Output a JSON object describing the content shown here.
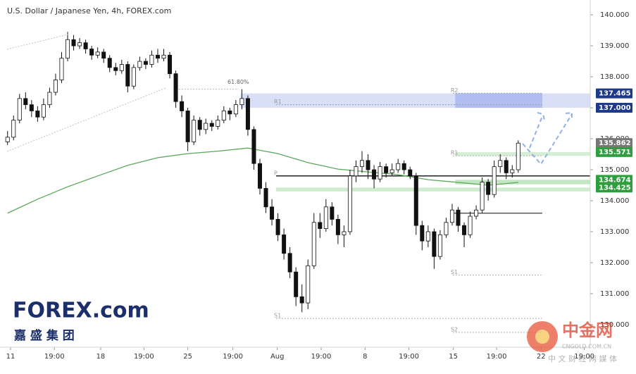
{
  "chart_data": {
    "type": "candlestick",
    "title": "U.S. Dollar / Japanese Yen, 4h, FOREX.com",
    "ylim": [
      129.27,
      140.48
    ],
    "xlim": [
      -0.67,
      96.98
    ],
    "yticks": [
      {
        "value": 130,
        "label": "130.000"
      },
      {
        "value": 131,
        "label": "131.000"
      },
      {
        "value": 132,
        "label": "132.000"
      },
      {
        "value": 133,
        "label": "133.000"
      },
      {
        "value": 134,
        "label": "134.000"
      },
      {
        "value": 135,
        "label": "135.000"
      },
      {
        "value": 136,
        "label": "136.000"
      },
      {
        "value": 137,
        "label": "137.000"
      },
      {
        "value": 138,
        "label": "138.000"
      },
      {
        "value": 139,
        "label": "139.000"
      },
      {
        "value": 140,
        "label": "140.000"
      }
    ],
    "xticks": [
      {
        "value": 0.5,
        "label": "11"
      },
      {
        "value": 7.8,
        "label": "19:00"
      },
      {
        "value": 15.5,
        "label": "18"
      },
      {
        "value": 22.7,
        "label": "19:00"
      },
      {
        "value": 30,
        "label": "25"
      },
      {
        "value": 37.5,
        "label": "19:00"
      },
      {
        "value": 44.9,
        "label": "Aug"
      },
      {
        "value": 52.2,
        "label": "19:00"
      },
      {
        "value": 59.5,
        "label": "8"
      },
      {
        "value": 66.8,
        "label": "19:00"
      },
      {
        "value": 74.2,
        "label": "15"
      },
      {
        "value": 81.4,
        "label": "19:00"
      },
      {
        "value": 88.8,
        "label": "22"
      },
      {
        "value": 96,
        "label": "19:00"
      }
    ],
    "up_color": "#ffffff",
    "down_color": "#111111",
    "outline_color": "#111111",
    "candles": [
      [
        135.9,
        136.25,
        135.8,
        136.05
      ],
      [
        136.05,
        136.75,
        135.95,
        136.6
      ],
      [
        136.6,
        137.45,
        136.5,
        137.3
      ],
      [
        137.3,
        137.5,
        136.95,
        137.1
      ],
      [
        137.1,
        137.25,
        136.7,
        136.9
      ],
      [
        136.9,
        137.05,
        136.55,
        136.7
      ],
      [
        136.7,
        137.3,
        136.6,
        137.1
      ],
      [
        137.1,
        137.65,
        137.0,
        137.5
      ],
      [
        137.5,
        138.1,
        137.4,
        137.9
      ],
      [
        137.9,
        138.8,
        137.8,
        138.6
      ],
      [
        138.6,
        139.45,
        138.5,
        139.2
      ],
      [
        139.2,
        139.35,
        138.85,
        139.0
      ],
      [
        139.0,
        139.25,
        138.9,
        139.1
      ],
      [
        139.1,
        139.2,
        138.75,
        138.9
      ],
      [
        138.9,
        139.0,
        138.55,
        138.7
      ],
      [
        138.7,
        138.95,
        138.6,
        138.8
      ],
      [
        138.8,
        138.9,
        138.45,
        138.6
      ],
      [
        138.6,
        138.7,
        138.15,
        138.3
      ],
      [
        138.3,
        138.45,
        138.05,
        138.2
      ],
      [
        138.2,
        138.55,
        138.1,
        138.4
      ],
      [
        138.4,
        138.5,
        137.5,
        137.7
      ],
      [
        137.7,
        138.4,
        137.6,
        138.3
      ],
      [
        138.3,
        138.65,
        138.2,
        138.5
      ],
      [
        138.5,
        138.6,
        138.25,
        138.4
      ],
      [
        138.4,
        138.85,
        138.3,
        138.7
      ],
      [
        138.7,
        138.9,
        138.45,
        138.6
      ],
      [
        138.6,
        138.9,
        138.5,
        138.7
      ],
      [
        138.7,
        138.8,
        137.95,
        138.1
      ],
      [
        138.1,
        138.2,
        137.0,
        137.2
      ],
      [
        137.2,
        137.4,
        136.7,
        136.9
      ],
      [
        136.9,
        137.0,
        135.6,
        135.9
      ],
      [
        135.9,
        136.75,
        135.8,
        136.6
      ],
      [
        136.6,
        136.7,
        136.1,
        136.3
      ],
      [
        136.3,
        136.65,
        136.15,
        136.5
      ],
      [
        136.5,
        136.6,
        136.25,
        136.4
      ],
      [
        136.4,
        136.75,
        136.3,
        136.6
      ],
      [
        136.6,
        137.05,
        136.5,
        136.9
      ],
      [
        136.9,
        137.0,
        136.6,
        136.8
      ],
      [
        136.8,
        137.25,
        136.7,
        137.1
      ],
      [
        137.1,
        137.6,
        136.95,
        137.3
      ],
      [
        137.3,
        137.4,
        136.1,
        136.3
      ],
      [
        136.3,
        136.4,
        135.0,
        135.2
      ],
      [
        135.2,
        135.35,
        134.2,
        134.4
      ],
      [
        134.4,
        134.6,
        133.6,
        133.8
      ],
      [
        133.8,
        134.05,
        133.2,
        133.4
      ],
      [
        133.4,
        133.6,
        132.7,
        132.9
      ],
      [
        132.9,
        133.1,
        132.1,
        132.3
      ],
      [
        132.3,
        132.5,
        131.5,
        131.7
      ],
      [
        131.7,
        131.85,
        130.6,
        130.9
      ],
      [
        130.9,
        131.3,
        130.4,
        130.7
      ],
      [
        130.7,
        132.1,
        130.5,
        131.9
      ],
      [
        131.9,
        133.6,
        131.8,
        133.3
      ],
      [
        133.3,
        133.6,
        132.8,
        133.1
      ],
      [
        133.1,
        134.05,
        133.0,
        133.8
      ],
      [
        133.8,
        133.95,
        133.2,
        133.4
      ],
      [
        133.4,
        133.55,
        132.6,
        132.9
      ],
      [
        132.9,
        133.2,
        132.5,
        133.0
      ],
      [
        133.0,
        135.0,
        132.9,
        134.8
      ],
      [
        134.8,
        135.3,
        134.6,
        135.1
      ],
      [
        135.1,
        135.6,
        134.9,
        135.3
      ],
      [
        135.3,
        135.5,
        134.7,
        135.0
      ],
      [
        135.0,
        135.15,
        134.4,
        134.7
      ],
      [
        134.7,
        135.25,
        134.6,
        135.1
      ],
      [
        135.1,
        135.2,
        134.75,
        134.9
      ],
      [
        134.9,
        135.2,
        134.8,
        135.0
      ],
      [
        135.0,
        135.35,
        134.9,
        135.2
      ],
      [
        135.2,
        135.3,
        134.85,
        135.0
      ],
      [
        135.0,
        135.1,
        134.7,
        134.8
      ],
      [
        134.8,
        134.9,
        132.9,
        133.2
      ],
      [
        133.2,
        133.35,
        132.4,
        132.7
      ],
      [
        132.7,
        133.2,
        132.5,
        133.0
      ],
      [
        133.0,
        133.1,
        131.8,
        132.2
      ],
      [
        132.2,
        133.05,
        132.1,
        132.9
      ],
      [
        132.9,
        133.45,
        132.8,
        133.3
      ],
      [
        133.3,
        133.9,
        133.2,
        133.7
      ],
      [
        133.7,
        133.8,
        133.0,
        133.2
      ],
      [
        133.2,
        133.3,
        132.5,
        132.9
      ],
      [
        132.9,
        133.65,
        132.8,
        133.5
      ],
      [
        133.5,
        133.85,
        133.4,
        133.7
      ],
      [
        133.7,
        134.75,
        133.6,
        134.6
      ],
      [
        134.6,
        134.7,
        134.0,
        134.2
      ],
      [
        134.2,
        135.3,
        134.1,
        135.1
      ],
      [
        135.1,
        135.5,
        134.9,
        135.3
      ],
      [
        135.3,
        135.4,
        134.7,
        134.9
      ],
      [
        134.9,
        135.15,
        134.75,
        135.0
      ],
      [
        135.0,
        135.95,
        134.9,
        135.86
      ]
    ],
    "ma": {
      "color": "#5aa85a",
      "x": [
        0,
        5,
        10,
        15,
        20,
        25,
        30,
        35,
        40,
        45,
        50,
        55,
        60,
        65,
        70,
        75,
        80,
        85
      ],
      "values": [
        133.6,
        134.05,
        134.45,
        134.8,
        135.14,
        135.39,
        135.52,
        135.6,
        135.7,
        135.52,
        135.23,
        135.02,
        134.93,
        134.84,
        134.68,
        134.59,
        134.5,
        134.59
      ]
    },
    "zones": [
      {
        "range": [
          137.0,
          137.465
        ],
        "x": [
          38.8,
          96.98
        ],
        "color": "rgba(120,140,225,0.28)"
      },
      {
        "range": [
          137.0,
          137.465
        ],
        "x": [
          74.5,
          89
        ],
        "color": "rgba(100,125,225,0.35)"
      },
      {
        "range": [
          135.45,
          135.571
        ],
        "x": [
          74.5,
          96.98
        ],
        "color": "rgba(120,200,120,0.3)"
      },
      {
        "range": [
          134.53,
          134.674
        ],
        "x": [
          74.5,
          96.98
        ],
        "color": "rgba(120,200,120,0.45)"
      },
      {
        "range": [
          134.3,
          134.425
        ],
        "x": [
          44.7,
          96.98
        ],
        "color": "rgba(120,200,120,0.35)"
      }
    ],
    "levels": [
      {
        "label": "P",
        "value": 134.8,
        "x": [
          44.7,
          96.98
        ],
        "color": "#222222"
      },
      {
        "label": "R1",
        "value": 137.1,
        "x": [
          44.7,
          89
        ],
        "color": "#9aa0b0"
      },
      {
        "label": "R2",
        "value": 137.47,
        "x": [
          74.1,
          89
        ],
        "color": "#9aa0b0"
      },
      {
        "label": "R1",
        "value": 135.45,
        "x": [
          74.1,
          89
        ],
        "color": "#b0b0b0"
      },
      {
        "label": "S1",
        "value": 130.2,
        "x": [
          44.7,
          89
        ],
        "color": "#b0b0b0"
      },
      {
        "label": "S1",
        "value": 131.6,
        "x": [
          74.1,
          89
        ],
        "color": "#b0b0b0"
      },
      {
        "label": "S2",
        "value": 129.75,
        "x": [
          74.1,
          89
        ],
        "color": "#b0b0b0"
      },
      {
        "value": 133.6,
        "x": [
          74.1,
          89
        ],
        "color": "#555555"
      },
      {
        "label": "61.80%",
        "value": 137.6,
        "x": [
          28.5,
          38.4
        ],
        "color": "#b0b0b0"
      }
    ],
    "markers": [
      {
        "value": 137.465,
        "label": "137.465",
        "color": "#1e3a8a"
      },
      {
        "value": 137.0,
        "label": "137.000",
        "color": "#1e3a8a"
      },
      {
        "value": 135.862,
        "label": "135.862",
        "color": "#777777"
      },
      {
        "value": 135.571,
        "label": "135.571",
        "color": "#2e9e3e"
      },
      {
        "value": 134.674,
        "label": "134.674",
        "color": "#2e9e3e"
      },
      {
        "value": 134.425,
        "label": "134.425",
        "color": "#2e9e3e"
      }
    ]
  },
  "logo": {
    "brand": "FOREX.com",
    "chinese": "嘉 盛 集 团"
  },
  "watermark": {
    "name": "中金网",
    "domain": "CNGOLD.COM.CN",
    "tagline": "中 文 财 经 网 媒 体"
  }
}
